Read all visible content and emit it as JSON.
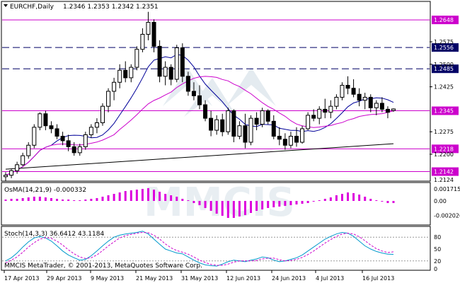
{
  "chart_data": [
    {
      "type": "candlestick",
      "symbol": "EURCHF,Daily",
      "ohlc_header": "1.2346 1.2353 1.2342 1.2351",
      "ylim": [
        1.2115,
        1.2705
      ],
      "y_ticks": [
        "1.2575",
        "1.2500",
        "1.2425",
        "1.2275",
        "1.2200"
      ],
      "levels": [
        {
          "value": 1.2648,
          "label": "1.2648",
          "style": "solid",
          "color": "#cc00cc"
        },
        {
          "value": 1.2556,
          "label": "1.2556",
          "style": "dashed",
          "color": "#000066"
        },
        {
          "value": 1.2485,
          "label": "1.2485",
          "style": "dashed",
          "color": "#000066"
        },
        {
          "value": 1.2345,
          "label": "1.2345",
          "style": "solid",
          "color": "#cc00cc"
        },
        {
          "value": 1.2218,
          "label": "1.2218",
          "style": "solid",
          "color": "#cc00cc"
        },
        {
          "value": 1.2142,
          "label": "1.2142",
          "style": "solid",
          "color": "#cc00cc"
        }
      ],
      "partial_tick": "1.2124",
      "x_labels": [
        "17 Apr 2013",
        "29 Apr 2013",
        "9 May 2013",
        "21 May 2013",
        "31 May 2013",
        "12 Jun 2013",
        "24 Jun 2013",
        "4 Jul 2013",
        "16 Jul 2013"
      ],
      "candles": [
        [
          1.2125,
          1.214,
          1.211,
          1.213
        ],
        [
          1.213,
          1.215,
          1.212,
          1.2145
        ],
        [
          1.2145,
          1.2175,
          1.2135,
          1.2165
        ],
        [
          1.2165,
          1.2205,
          1.216,
          1.2195
        ],
        [
          1.2195,
          1.224,
          1.2185,
          1.223
        ],
        [
          1.223,
          1.23,
          1.222,
          1.229
        ],
        [
          1.229,
          1.234,
          1.228,
          1.2335
        ],
        [
          1.2335,
          1.2345,
          1.228,
          1.2295
        ],
        [
          1.2295,
          1.231,
          1.227,
          1.2285
        ],
        [
          1.2285,
          1.23,
          1.225,
          1.226
        ],
        [
          1.226,
          1.2275,
          1.223,
          1.2245
        ],
        [
          1.2245,
          1.2265,
          1.221,
          1.2225
        ],
        [
          1.2225,
          1.224,
          1.2195,
          1.2205
        ],
        [
          1.2205,
          1.2235,
          1.2195,
          1.2225
        ],
        [
          1.2225,
          1.2275,
          1.2215,
          1.2265
        ],
        [
          1.2265,
          1.23,
          1.2255,
          1.229
        ],
        [
          1.229,
          1.232,
          1.227,
          1.2305
        ],
        [
          1.2305,
          1.237,
          1.2295,
          1.236
        ],
        [
          1.236,
          1.242,
          1.234,
          1.241
        ],
        [
          1.241,
          1.2455,
          1.238,
          1.244
        ],
        [
          1.244,
          1.25,
          1.242,
          1.248
        ],
        [
          1.248,
          1.251,
          1.244,
          1.2455
        ],
        [
          1.2455,
          1.25,
          1.244,
          1.249
        ],
        [
          1.249,
          1.256,
          1.248,
          1.255
        ],
        [
          1.255,
          1.262,
          1.254,
          1.26
        ],
        [
          1.26,
          1.2675,
          1.258,
          1.264
        ],
        [
          1.264,
          1.265,
          1.254,
          1.256
        ],
        [
          1.256,
          1.258,
          1.244,
          1.246
        ],
        [
          1.246,
          1.251,
          1.243,
          1.249
        ],
        [
          1.249,
          1.25,
          1.243,
          1.245
        ],
        [
          1.245,
          1.2565,
          1.244,
          1.2555
        ],
        [
          1.2555,
          1.257,
          1.244,
          1.246
        ],
        [
          1.246,
          1.2475,
          1.2395,
          1.241
        ],
        [
          1.241,
          1.244,
          1.238,
          1.2395
        ],
        [
          1.2395,
          1.243,
          1.235,
          1.2365
        ],
        [
          1.2365,
          1.238,
          1.231,
          1.232
        ],
        [
          1.232,
          1.2345,
          1.226,
          1.228
        ],
        [
          1.228,
          1.233,
          1.2265,
          1.2315
        ],
        [
          1.2315,
          1.2335,
          1.226,
          1.2275
        ],
        [
          1.2275,
          1.2355,
          1.2265,
          1.2345
        ],
        [
          1.2345,
          1.235,
          1.224,
          1.226
        ],
        [
          1.226,
          1.231,
          1.225,
          1.2295
        ],
        [
          1.2295,
          1.2335,
          1.222,
          1.224
        ],
        [
          1.224,
          1.233,
          1.223,
          1.232
        ],
        [
          1.232,
          1.234,
          1.228,
          1.23
        ],
        [
          1.23,
          1.2355,
          1.229,
          1.2345
        ],
        [
          1.2345,
          1.235,
          1.23,
          1.231
        ],
        [
          1.231,
          1.233,
          1.225,
          1.226
        ],
        [
          1.226,
          1.229,
          1.223,
          1.225
        ],
        [
          1.225,
          1.227,
          1.2215,
          1.223
        ],
        [
          1.223,
          1.2275,
          1.222,
          1.226
        ],
        [
          1.226,
          1.229,
          1.2225,
          1.224
        ],
        [
          1.224,
          1.2295,
          1.2235,
          1.2285
        ],
        [
          1.2285,
          1.234,
          1.228,
          1.233
        ],
        [
          1.233,
          1.235,
          1.231,
          1.232
        ],
        [
          1.232,
          1.236,
          1.23,
          1.235
        ],
        [
          1.235,
          1.2385,
          1.232,
          1.234
        ],
        [
          1.234,
          1.238,
          1.232,
          1.236
        ],
        [
          1.236,
          1.24,
          1.235,
          1.239
        ],
        [
          1.239,
          1.244,
          1.238,
          1.243
        ],
        [
          1.243,
          1.246,
          1.24,
          1.242
        ],
        [
          1.242,
          1.245,
          1.239,
          1.24
        ],
        [
          1.24,
          1.242,
          1.236,
          1.238
        ],
        [
          1.238,
          1.2405,
          1.235,
          1.239
        ],
        [
          1.239,
          1.24,
          1.234,
          1.2355
        ],
        [
          1.2355,
          1.238,
          1.233,
          1.237
        ],
        [
          1.237,
          1.239,
          1.234,
          1.235
        ],
        [
          1.235,
          1.236,
          1.232,
          1.234
        ],
        [
          1.2346,
          1.2353,
          1.2342,
          1.2351
        ]
      ],
      "ma_fast_color": "#000099",
      "ma_mid_color": "#cc00cc",
      "ma_slow_color": "#000000"
    },
    {
      "type": "bar",
      "label": "OsMA(14,21,9) -0.000332",
      "ylim": [
        -0.0032,
        0.0022
      ],
      "y_ticks": [
        "0.001715",
        "0.00",
        "-0.002026"
      ],
      "values": [
        0.0002,
        0.0003,
        0.0003,
        0.0004,
        0.0005,
        0.0006,
        0.0006,
        0.0005,
        0.0004,
        0.0003,
        0.0002,
        0.0002,
        0.0001,
        0.0001,
        0.0002,
        0.0003,
        0.0004,
        0.0006,
        0.0008,
        0.001,
        0.0012,
        0.0014,
        0.0015,
        0.0016,
        0.0017,
        0.0018,
        0.0016,
        0.0013,
        0.001,
        0.0008,
        0.0006,
        0.0003,
        0.0001,
        -0.0003,
        -0.0006,
        -0.001,
        -0.0014,
        -0.0018,
        -0.0021,
        -0.0024,
        -0.0024,
        -0.0022,
        -0.002,
        -0.0017,
        -0.0014,
        -0.0012,
        -0.001,
        -0.0009,
        -0.0008,
        -0.0007,
        -0.0006,
        -0.0005,
        -0.0004,
        -0.0003,
        -0.0001,
        0.0001,
        0.0003,
        0.0005,
        0.0008,
        0.001,
        0.0012,
        0.0011,
        0.0009,
        0.0006,
        0.0003,
        0.0001,
        -0.0001,
        -0.0003,
        -0.0003
      ],
      "color": "#dd00dd"
    },
    {
      "type": "line",
      "label": "Stoch(14,3,3) 36.6412 43.1184",
      "ylim": [
        0,
        100
      ],
      "y_ticks": [
        "80",
        "50",
        "20",
        "0"
      ],
      "k_values": [
        20,
        28,
        40,
        55,
        68,
        78,
        82,
        78,
        70,
        58,
        45,
        35,
        28,
        22,
        24,
        33,
        45,
        58,
        70,
        80,
        85,
        88,
        90,
        92,
        95,
        88,
        75,
        62,
        50,
        45,
        40,
        38,
        30,
        22,
        15,
        10,
        8,
        7,
        12,
        18,
        22,
        20,
        18,
        22,
        25,
        30,
        28,
        22,
        18,
        20,
        24,
        28,
        35,
        45,
        55,
        65,
        75,
        82,
        88,
        92,
        90,
        82,
        70,
        58,
        50,
        44,
        40,
        37,
        36.64
      ],
      "d_values": [
        15,
        22,
        30,
        42,
        55,
        66,
        75,
        79,
        77,
        70,
        60,
        48,
        38,
        30,
        26,
        28,
        35,
        46,
        58,
        68,
        78,
        84,
        87,
        90,
        92,
        91,
        85,
        75,
        63,
        53,
        46,
        42,
        37,
        30,
        22,
        16,
        11,
        9,
        9,
        12,
        17,
        20,
        20,
        20,
        21,
        25,
        27,
        27,
        23,
        20,
        21,
        24,
        29,
        36,
        45,
        55,
        65,
        74,
        82,
        88,
        90,
        88,
        81,
        71,
        60,
        51,
        45,
        41,
        43.12
      ],
      "k_color": "#0099cc",
      "d_color": "#cc00cc"
    }
  ],
  "footer": "MMCIS MetaTrader, © 2001-2013, MetaQuotes Software Corp.",
  "watermark": "MMCIS"
}
